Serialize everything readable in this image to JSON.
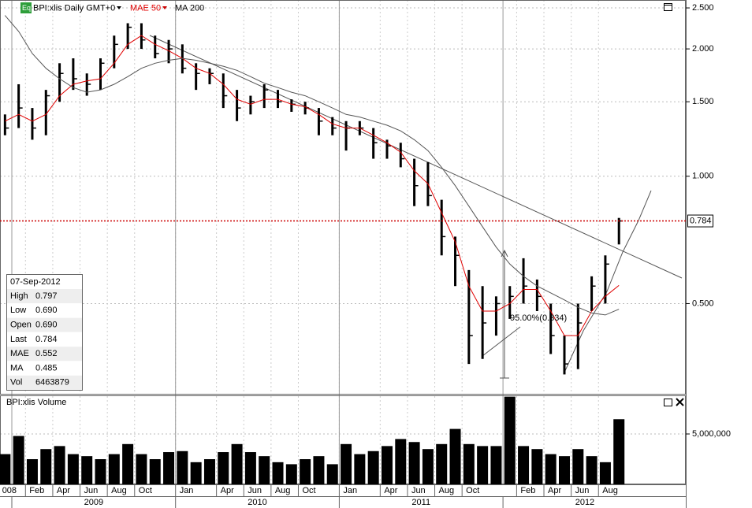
{
  "chart_data": [
    {
      "type": "hlc",
      "title": "BPI:xlis Daily GMT+0",
      "badge": "Eq",
      "color": "#000000",
      "x": [
        "2008-12",
        "2009-01",
        "2009-02",
        "2009-03",
        "2009-04",
        "2009-05",
        "2009-06",
        "2009-07",
        "2009-08",
        "2009-09",
        "2009-10",
        "2009-11",
        "2009-12",
        "2010-01",
        "2010-02",
        "2010-03",
        "2010-04",
        "2010-05",
        "2010-06",
        "2010-07",
        "2010-08",
        "2010-09",
        "2010-10",
        "2010-11",
        "2010-12",
        "2011-01",
        "2011-02",
        "2011-03",
        "2011-04",
        "2011-05",
        "2011-06",
        "2011-07",
        "2011-08",
        "2011-09",
        "2011-10",
        "2011-11",
        "2011-12",
        "2012-01",
        "2012-02",
        "2012-03",
        "2012-04",
        "2012-05",
        "2012-06",
        "2012-07",
        "2012-08",
        "2012-09"
      ],
      "high": [
        1.4,
        1.65,
        1.45,
        1.6,
        1.85,
        1.9,
        1.75,
        1.9,
        2.15,
        2.3,
        2.3,
        2.15,
        2.1,
        2.05,
        1.85,
        1.8,
        1.75,
        1.6,
        1.55,
        1.65,
        1.6,
        1.52,
        1.5,
        1.45,
        1.38,
        1.35,
        1.35,
        1.3,
        1.22,
        1.2,
        1.1,
        1.08,
        0.88,
        0.72,
        0.6,
        0.55,
        0.52,
        0.55,
        0.64,
        0.57,
        0.5,
        0.42,
        0.5,
        0.58,
        0.65,
        0.797
      ],
      "low": [
        1.25,
        1.3,
        1.22,
        1.25,
        1.5,
        1.6,
        1.55,
        1.6,
        1.8,
        2.0,
        2.0,
        1.9,
        1.85,
        1.75,
        1.6,
        1.65,
        1.45,
        1.35,
        1.4,
        1.45,
        1.45,
        1.42,
        1.4,
        1.25,
        1.25,
        1.15,
        1.25,
        1.1,
        1.1,
        1.05,
        0.85,
        0.85,
        0.65,
        0.55,
        0.36,
        0.37,
        0.42,
        0.46,
        0.5,
        0.48,
        0.38,
        0.34,
        0.35,
        0.48,
        0.5,
        0.69
      ],
      "close": [
        1.3,
        1.45,
        1.3,
        1.55,
        1.75,
        1.7,
        1.65,
        1.85,
        2.05,
        2.25,
        2.1,
        1.95,
        2.0,
        1.8,
        1.75,
        1.75,
        1.55,
        1.45,
        1.5,
        1.6,
        1.5,
        1.48,
        1.45,
        1.35,
        1.3,
        1.3,
        1.3,
        1.2,
        1.18,
        1.1,
        0.95,
        0.9,
        0.72,
        0.65,
        0.42,
        0.45,
        0.5,
        0.52,
        0.55,
        0.52,
        0.42,
        0.36,
        0.45,
        0.55,
        0.62,
        0.784
      ],
      "series": [
        {
          "name": "MAE 50",
          "color": "#e00000",
          "values": [
            1.35,
            1.4,
            1.35,
            1.4,
            1.55,
            1.65,
            1.68,
            1.7,
            1.85,
            2.05,
            2.15,
            2.05,
            1.98,
            1.9,
            1.8,
            1.75,
            1.65,
            1.52,
            1.48,
            1.52,
            1.52,
            1.48,
            1.46,
            1.4,
            1.33,
            1.3,
            1.3,
            1.25,
            1.2,
            1.14,
            1.03,
            0.96,
            0.82,
            0.7,
            0.55,
            0.48,
            0.48,
            0.5,
            0.54,
            0.54,
            0.48,
            0.42,
            0.42,
            0.48,
            0.52,
            0.552
          ]
        },
        {
          "name": "MA 200",
          "color": "#555555",
          "values": [
            2.4,
            2.2,
            1.95,
            1.8,
            1.7,
            1.62,
            1.58,
            1.6,
            1.65,
            1.72,
            1.8,
            1.85,
            1.88,
            1.9,
            1.88,
            1.85,
            1.82,
            1.78,
            1.72,
            1.66,
            1.62,
            1.58,
            1.55,
            1.5,
            1.45,
            1.4,
            1.38,
            1.35,
            1.32,
            1.28,
            1.22,
            1.15,
            1.05,
            0.95,
            0.85,
            0.76,
            0.68,
            0.62,
            0.58,
            0.55,
            0.53,
            0.51,
            0.49,
            0.475,
            0.47,
            0.485
          ]
        }
      ],
      "log_scale": true,
      "ylim": [
        0.306,
        2.61
      ],
      "yticks": [
        {
          "value": 2.5,
          "label": "2.500"
        },
        {
          "value": 2,
          "label": "2.000"
        },
        {
          "value": 1.5,
          "label": "1.500"
        },
        {
          "value": 1,
          "label": "1.000"
        },
        {
          "value": 0.5,
          "label": "0.500"
        }
      ],
      "grid": true,
      "last": {
        "value": 0.784,
        "label": "0.784"
      },
      "last_color": "#cc0000",
      "annotation": "95.00%(0.334)",
      "info_box": {
        "date": "07-Sep-2012",
        "rows": [
          [
            "High",
            "0.797"
          ],
          [
            "Low",
            "0.690"
          ],
          [
            "Open",
            "0.690"
          ],
          [
            "Last",
            "0.784"
          ],
          [
            "MAE",
            "0.552"
          ],
          [
            "MA",
            "0.485"
          ],
          [
            "Vol",
            "6463879"
          ]
        ]
      }
    },
    {
      "type": "bar",
      "title": "BPI:xlis Volume",
      "color": "#000000",
      "values": [
        3000000,
        4800000,
        2500000,
        3500000,
        3800000,
        3000000,
        2800000,
        2500000,
        3000000,
        4000000,
        3000000,
        2500000,
        3200000,
        3300000,
        2200000,
        2500000,
        3200000,
        4000000,
        3200000,
        2800000,
        2200000,
        2000000,
        2500000,
        2800000,
        2000000,
        4000000,
        3000000,
        3300000,
        3800000,
        4500000,
        4200000,
        3500000,
        4000000,
        5500000,
        4000000,
        3800000,
        3800000,
        8700000,
        3800000,
        3500000,
        3000000,
        2800000,
        3500000,
        2800000,
        2200000,
        6463879
      ],
      "ylim": [
        0,
        8750000
      ],
      "yticks": [
        {
          "value": 5000000,
          "label": "5,000,000"
        }
      ],
      "months": [
        {
          "value": "2008-12",
          "label": "008"
        },
        {
          "value": "2009-02",
          "label": "Feb"
        },
        {
          "value": "2009-04",
          "label": "Apr"
        },
        {
          "value": "2009-06",
          "label": "Jun"
        },
        {
          "value": "2009-08",
          "label": "Aug"
        },
        {
          "value": "2009-10",
          "label": "Oct"
        },
        {
          "value": "2010-01",
          "label": "Jan"
        },
        {
          "value": "2010-04",
          "label": "Apr"
        },
        {
          "value": "2010-06",
          "label": "Jun"
        },
        {
          "value": "2010-08",
          "label": "Aug"
        },
        {
          "value": "2010-10",
          "label": "Oct"
        },
        {
          "value": "2011-01",
          "label": "Jan"
        },
        {
          "value": "2011-04",
          "label": "Apr"
        },
        {
          "value": "2011-06",
          "label": "Jun"
        },
        {
          "value": "2011-08",
          "label": "Aug"
        },
        {
          "value": "2011-10",
          "label": "Oct"
        },
        {
          "value": "2012-02",
          "label": "Feb"
        },
        {
          "value": "2012-04",
          "label": "Apr"
        },
        {
          "value": "2012-06",
          "label": "Jun"
        },
        {
          "value": "2012-08",
          "label": "Aug"
        }
      ],
      "years": [
        {
          "value": 2009,
          "label": "2009"
        },
        {
          "value": 2010,
          "label": "2010"
        },
        {
          "value": 2011,
          "label": "2011"
        },
        {
          "value": 2012,
          "label": "2012"
        }
      ]
    }
  ]
}
